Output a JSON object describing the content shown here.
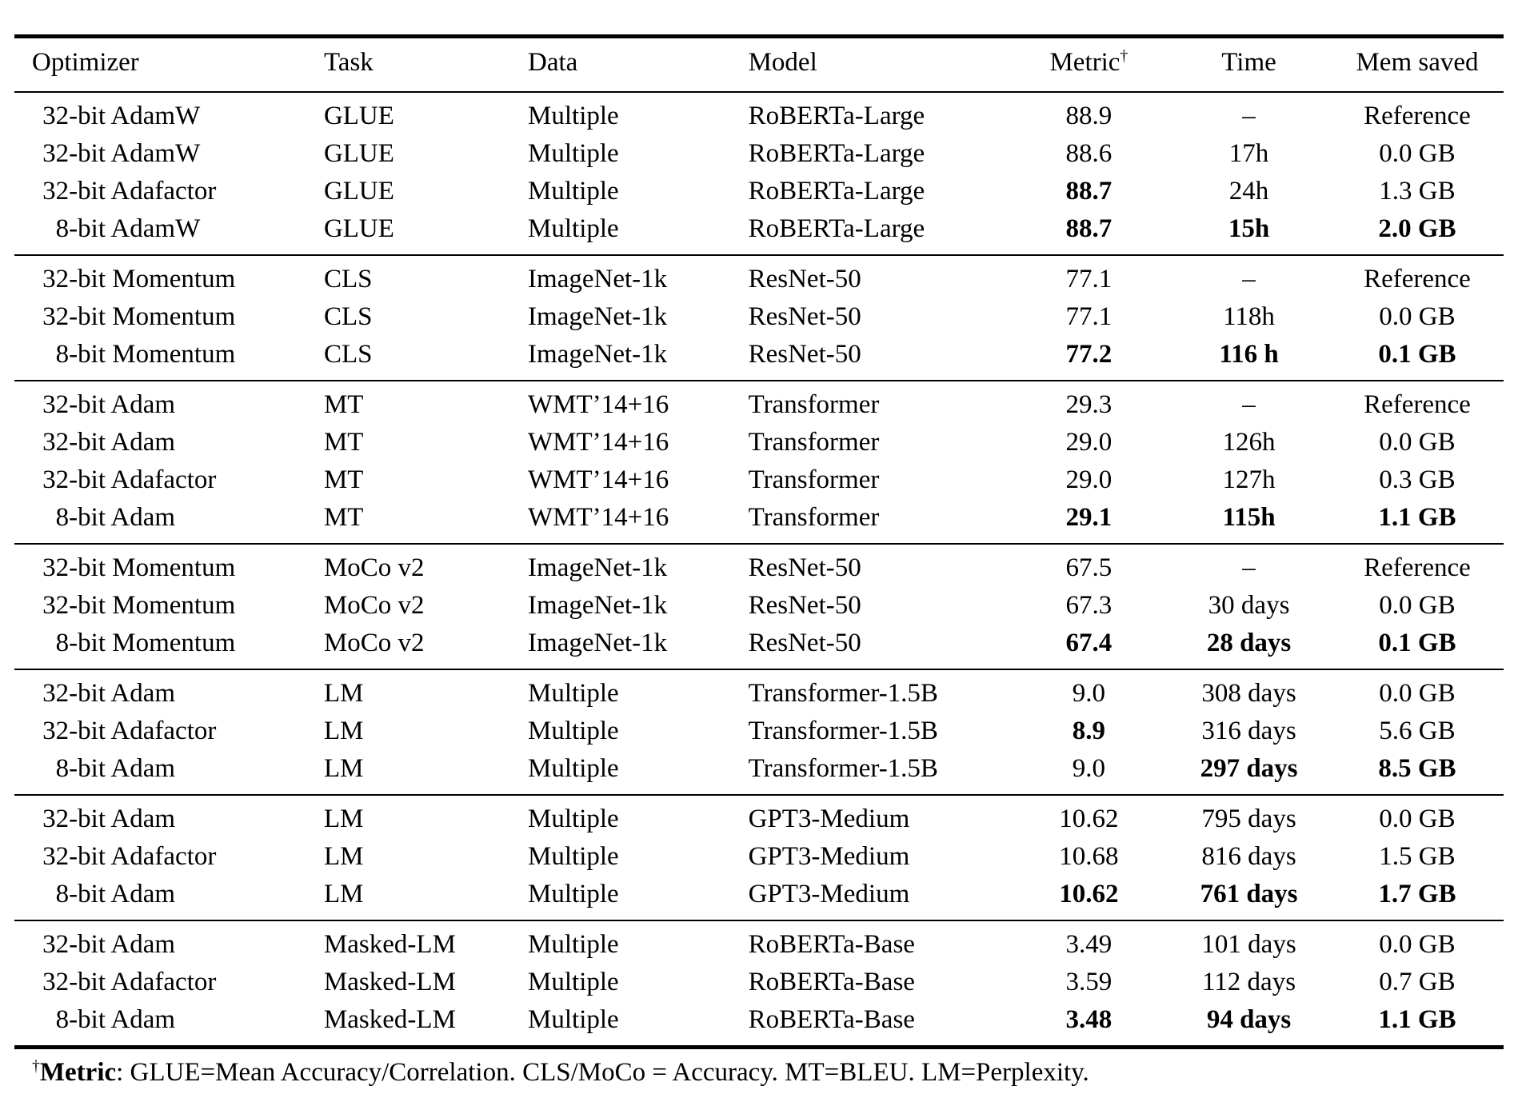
{
  "table": {
    "headers": {
      "optimizer": "Optimizer",
      "task": "Task",
      "data": "Data",
      "model": "Model",
      "metric": "Metric",
      "metric_sup": "†",
      "time": "Time",
      "mem": "Mem saved"
    },
    "groups": [
      {
        "rows": [
          {
            "opt_prefix": "32-bit",
            "opt_name": "AdamW",
            "task": "GLUE",
            "data": "Multiple",
            "model": "RoBERTa-Large",
            "metric": "88.9",
            "time": "–",
            "mem": "Reference",
            "bold": []
          },
          {
            "opt_prefix": "32-bit",
            "opt_name": "AdamW",
            "task": "GLUE",
            "data": "Multiple",
            "model": "RoBERTa-Large",
            "metric": "88.6",
            "time": "17h",
            "mem": "0.0 GB",
            "bold": []
          },
          {
            "opt_prefix": "32-bit",
            "opt_name": "Adafactor",
            "task": "GLUE",
            "data": "Multiple",
            "model": "RoBERTa-Large",
            "metric": "88.7",
            "time": "24h",
            "mem": "1.3 GB",
            "bold": [
              "metric"
            ]
          },
          {
            "opt_prefix": "8-bit",
            "opt_name": "AdamW",
            "task": "GLUE",
            "data": "Multiple",
            "model": "RoBERTa-Large",
            "metric": "88.7",
            "time": "15h",
            "mem": "2.0 GB",
            "bold": [
              "metric",
              "time",
              "mem"
            ]
          }
        ]
      },
      {
        "rows": [
          {
            "opt_prefix": "32-bit",
            "opt_name": "Momentum",
            "task": "CLS",
            "data": "ImageNet-1k",
            "model": "ResNet-50",
            "metric": "77.1",
            "time": "–",
            "mem": "Reference",
            "bold": []
          },
          {
            "opt_prefix": "32-bit",
            "opt_name": "Momentum",
            "task": "CLS",
            "data": "ImageNet-1k",
            "model": "ResNet-50",
            "metric": "77.1",
            "time": "118h",
            "mem": "0.0 GB",
            "bold": []
          },
          {
            "opt_prefix": "8-bit",
            "opt_name": "Momentum",
            "task": "CLS",
            "data": "ImageNet-1k",
            "model": "ResNet-50",
            "metric": "77.2",
            "time": "116 h",
            "mem": "0.1 GB",
            "bold": [
              "metric",
              "time",
              "mem"
            ]
          }
        ]
      },
      {
        "rows": [
          {
            "opt_prefix": "32-bit",
            "opt_name": "Adam",
            "task": "MT",
            "data": "WMT’14+16",
            "model": "Transformer",
            "metric": "29.3",
            "time": "–",
            "mem": "Reference",
            "bold": []
          },
          {
            "opt_prefix": "32-bit",
            "opt_name": "Adam",
            "task": "MT",
            "data": "WMT’14+16",
            "model": "Transformer",
            "metric": "29.0",
            "time": "126h",
            "mem": "0.0 GB",
            "bold": []
          },
          {
            "opt_prefix": "32-bit",
            "opt_name": "Adafactor",
            "task": "MT",
            "data": "WMT’14+16",
            "model": "Transformer",
            "metric": "29.0",
            "time": "127h",
            "mem": "0.3 GB",
            "bold": []
          },
          {
            "opt_prefix": "8-bit",
            "opt_name": "Adam",
            "task": "MT",
            "data": "WMT’14+16",
            "model": "Transformer",
            "metric": "29.1",
            "time": "115h",
            "mem": "1.1 GB",
            "bold": [
              "metric",
              "time",
              "mem"
            ]
          }
        ]
      },
      {
        "rows": [
          {
            "opt_prefix": "32-bit",
            "opt_name": "Momentum",
            "task": "MoCo v2",
            "data": "ImageNet-1k",
            "model": "ResNet-50",
            "metric": "67.5",
            "time": "–",
            "mem": "Reference",
            "bold": []
          },
          {
            "opt_prefix": "32-bit",
            "opt_name": "Momentum",
            "task": "MoCo v2",
            "data": "ImageNet-1k",
            "model": "ResNet-50",
            "metric": "67.3",
            "time": "30 days",
            "mem": "0.0 GB",
            "bold": []
          },
          {
            "opt_prefix": "8-bit",
            "opt_name": "Momentum",
            "task": "MoCo v2",
            "data": "ImageNet-1k",
            "model": "ResNet-50",
            "metric": "67.4",
            "time": "28 days",
            "mem": "0.1 GB",
            "bold": [
              "metric",
              "time",
              "mem"
            ]
          }
        ]
      },
      {
        "rows": [
          {
            "opt_prefix": "32-bit",
            "opt_name": "Adam",
            "task": "LM",
            "data": "Multiple",
            "model": "Transformer-1.5B",
            "metric": "9.0",
            "time": "308 days",
            "mem": "0.0 GB",
            "bold": []
          },
          {
            "opt_prefix": "32-bit",
            "opt_name": "Adafactor",
            "task": "LM",
            "data": "Multiple",
            "model": "Transformer-1.5B",
            "metric": "8.9",
            "time": "316 days",
            "mem": "5.6 GB",
            "bold": [
              "metric"
            ]
          },
          {
            "opt_prefix": "8-bit",
            "opt_name": "Adam",
            "task": "LM",
            "data": "Multiple",
            "model": "Transformer-1.5B",
            "metric": "9.0",
            "time": "297 days",
            "mem": "8.5 GB",
            "bold": [
              "time",
              "mem"
            ]
          }
        ]
      },
      {
        "rows": [
          {
            "opt_prefix": "32-bit",
            "opt_name": "Adam",
            "task": "LM",
            "data": "Multiple",
            "model": "GPT3-Medium",
            "metric": "10.62",
            "time": "795 days",
            "mem": "0.0 GB",
            "bold": []
          },
          {
            "opt_prefix": "32-bit",
            "opt_name": "Adafactor",
            "task": "LM",
            "data": "Multiple",
            "model": "GPT3-Medium",
            "metric": "10.68",
            "time": "816 days",
            "mem": "1.5 GB",
            "bold": []
          },
          {
            "opt_prefix": "8-bit",
            "opt_name": "Adam",
            "task": "LM",
            "data": "Multiple",
            "model": "GPT3-Medium",
            "metric": "10.62",
            "time": "761 days",
            "mem": "1.7 GB",
            "bold": [
              "metric",
              "time",
              "mem"
            ]
          }
        ]
      },
      {
        "rows": [
          {
            "opt_prefix": "32-bit",
            "opt_name": "Adam",
            "task": "Masked-LM",
            "data": "Multiple",
            "model": "RoBERTa-Base",
            "metric": "3.49",
            "time": "101 days",
            "mem": "0.0 GB",
            "bold": []
          },
          {
            "opt_prefix": "32-bit",
            "opt_name": "Adafactor",
            "task": "Masked-LM",
            "data": "Multiple",
            "model": "RoBERTa-Base",
            "metric": "3.59",
            "time": "112 days",
            "mem": "0.7 GB",
            "bold": []
          },
          {
            "opt_prefix": "8-bit",
            "opt_name": "Adam",
            "task": "Masked-LM",
            "data": "Multiple",
            "model": "RoBERTa-Base",
            "metric": "3.48",
            "time": "94 days",
            "mem": "1.1 GB",
            "bold": [
              "metric",
              "time",
              "mem"
            ]
          }
        ]
      }
    ]
  },
  "footnote": {
    "sup": "†",
    "label": "Metric",
    "text": ": GLUE=Mean Accuracy/Correlation. CLS/MoCo = Accuracy. MT=BLEU. LM=Perplexity."
  }
}
